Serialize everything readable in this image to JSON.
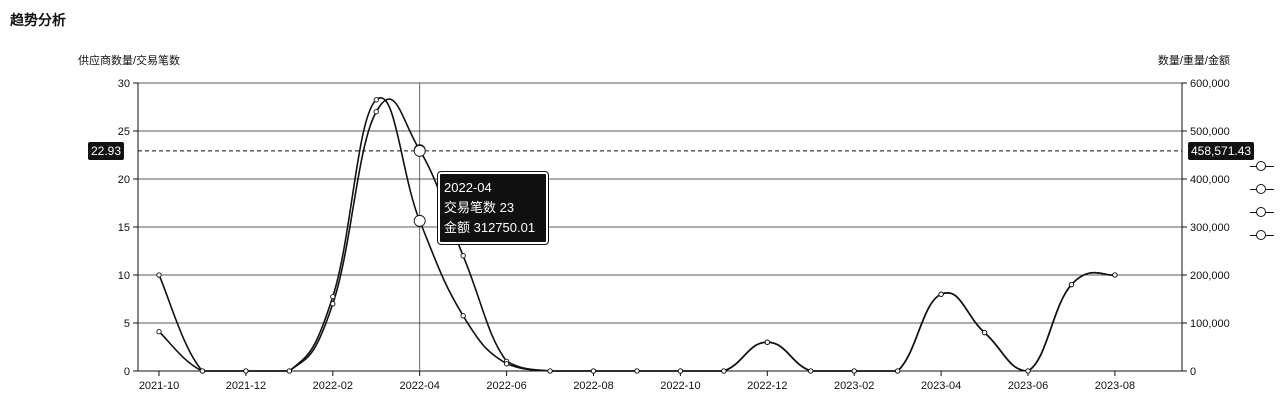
{
  "section": {
    "title": "趋势分析"
  },
  "chart_data": {
    "type": "line",
    "categories": [
      "2021-10",
      "2021-11",
      "2021-12",
      "2022-01",
      "2022-02",
      "2022-03",
      "2022-04",
      "2022-05",
      "2022-06",
      "2022-07",
      "2022-08",
      "2022-09",
      "2022-10",
      "2022-11",
      "2022-12",
      "2023-01",
      "2023-02",
      "2023-03",
      "2023-04",
      "2023-05",
      "2023-06",
      "2023-07",
      "2023-08",
      "2023-09"
    ],
    "x_tick_labels": [
      "2021-10",
      "2021-12",
      "2022-02",
      "2022-04",
      "2022-06",
      "2022-08",
      "2022-10",
      "2022-12",
      "2023-02",
      "2023-04",
      "2023-06",
      "2023-08"
    ],
    "y_left": {
      "label": "供应商数量/交易笔数",
      "ylim": [
        0,
        30
      ],
      "ticks": [
        "0",
        "5",
        "10",
        "15",
        "20",
        "25",
        "30"
      ]
    },
    "y_right": {
      "label": "数量/重量/金额",
      "ylim": [
        0,
        600000
      ],
      "ticks": [
        "0",
        "100,000",
        "200,000",
        "300,000",
        "400,000",
        "500,000",
        "600,000"
      ]
    },
    "series": [
      {
        "name": "交易笔数",
        "axis": "left",
        "values": [
          10,
          0,
          0,
          0,
          7,
          27,
          23,
          12,
          1,
          0,
          0,
          0,
          0,
          0,
          3,
          0,
          0,
          0,
          8,
          4,
          0,
          9,
          10,
          null
        ]
      },
      {
        "name": "金额",
        "axis": "right",
        "values": [
          82000,
          0,
          0,
          0,
          155000,
          565000,
          312750.01,
          115000,
          15000,
          0,
          0,
          0,
          0,
          0,
          60000,
          0,
          0,
          0,
          160000,
          80000,
          0,
          180000,
          200000,
          null
        ]
      }
    ],
    "crosshair": {
      "category": "2022-04",
      "left_value": "22.93",
      "right_value": "458,571.43"
    },
    "tooltip": {
      "title": "2022-04",
      "line1": "交易笔数 23",
      "line2": "金额 312750.01"
    },
    "legend_placement": "right",
    "grid": true
  }
}
